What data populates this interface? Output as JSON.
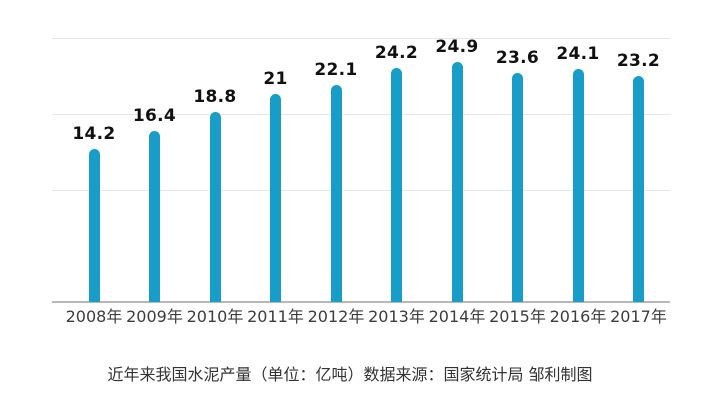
{
  "chart_data": {
    "type": "bar",
    "categories": [
      "2008年",
      "2009年",
      "2010年",
      "2011年",
      "2012年",
      "2013年",
      "2014年",
      "2015年",
      "2016年",
      "2017年"
    ],
    "values": [
      14.2,
      16.4,
      18.8,
      21,
      22.1,
      24.2,
      24.9,
      23.6,
      24.1,
      23.2
    ],
    "value_labels": [
      "14.2",
      "16.4",
      "18.8",
      "21",
      "22.1",
      "24.2",
      "24.9",
      "23.6",
      "24.1",
      "23.2"
    ],
    "caption": "近年来我国水泥产量（单位：亿吨）数据来源：国家统计局 邹利制图",
    "unit": "亿吨",
    "xlabel": "",
    "ylabel": "",
    "legend": [],
    "grid": true,
    "gridline_count": 3,
    "value_labels_shown": true,
    "colors": {
      "bar": "#189dc9",
      "gridline": "#e6e6e6",
      "axis_line": "#b8b8b8",
      "value_label": "#111111",
      "category_label": "#3d3d3d",
      "caption_text": "#333333",
      "background": "#ffffff"
    }
  }
}
